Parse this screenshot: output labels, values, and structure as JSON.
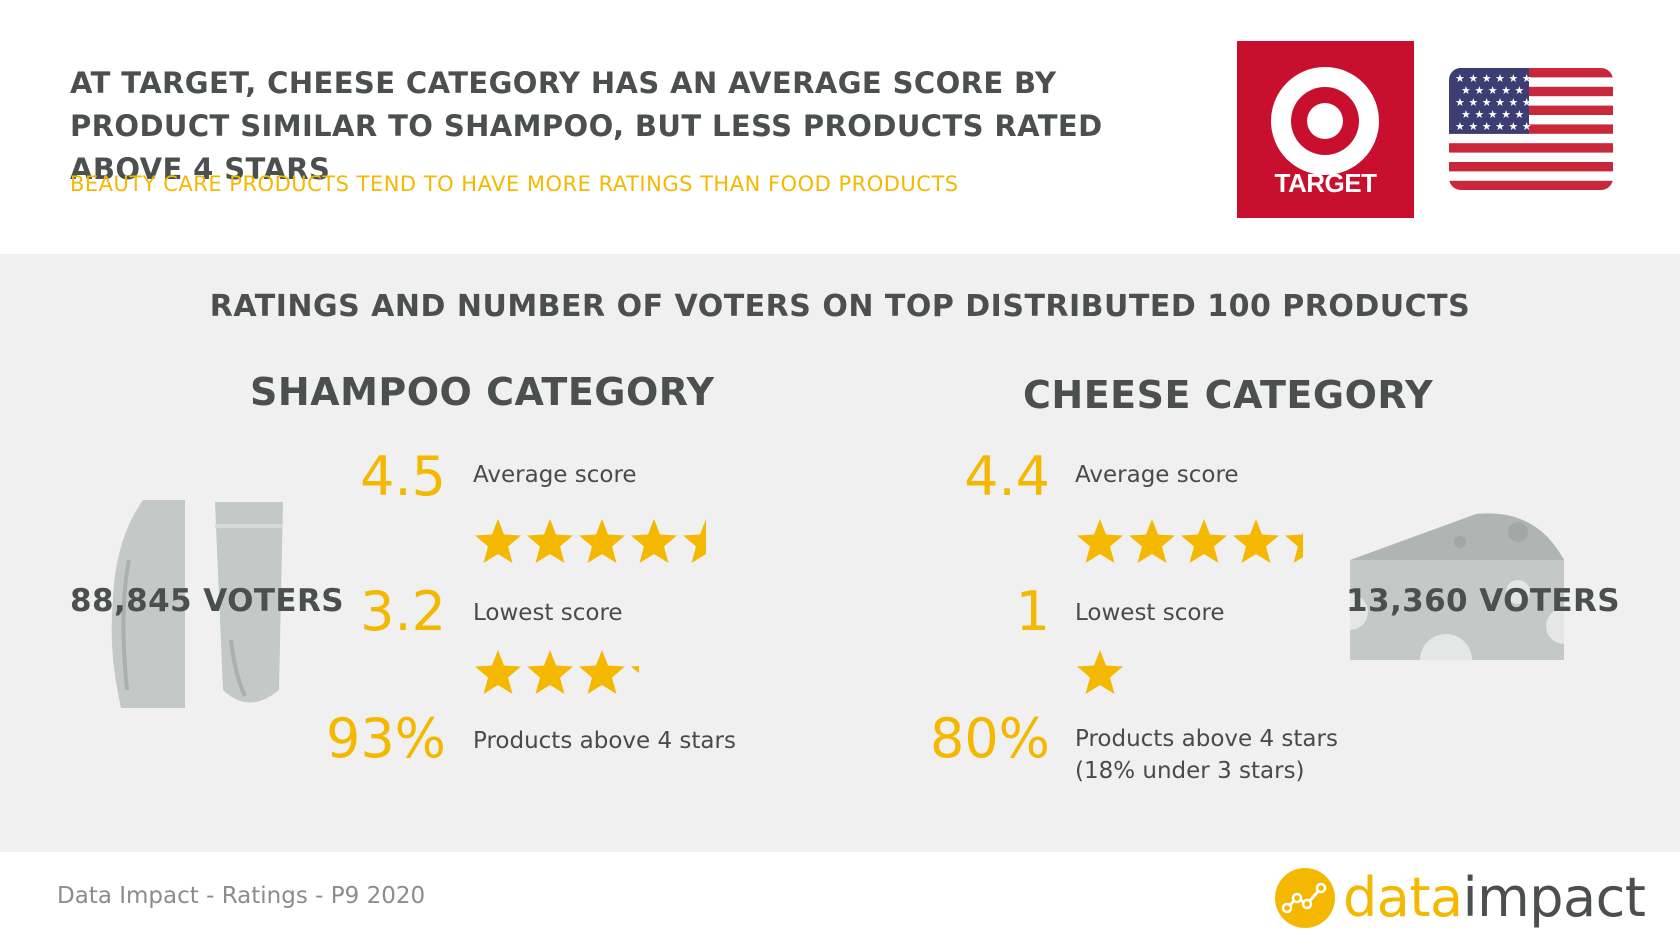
{
  "header": {
    "headline": "AT TARGET, CHEESE CATEGORY HAS AN AVERAGE SCORE BY PRODUCT SIMILAR TO SHAMPOO, BUT LESS PRODUCTS RATED ABOVE 4 STARS",
    "subline": "BEAUTY CARE PRODUCTS TEND TO HAVE MORE RATINGS THAN FOOD PRODUCTS",
    "retailer_logo": {
      "text": "TARGET",
      "color": "#c8102e",
      "icon": "target-bullseye-icon"
    },
    "country_flag": {
      "icon": "us-flag-icon"
    }
  },
  "panel": {
    "title": "RATINGS AND NUMBER OF VOTERS ON TOP DISTRIBUTED 100 PRODUCTS",
    "categories": [
      {
        "title": "SHAMPOO CATEGORY",
        "voters": "88,845 VOTERS",
        "icon": "shampoo-bottles-icon",
        "average": {
          "value": "4.5",
          "label": "Average score",
          "stars": 4.5
        },
        "lowest": {
          "value": "3.2",
          "label": "Lowest score",
          "stars": 3.2
        },
        "above": {
          "value": "93%",
          "label": "Products above 4 stars",
          "note": ""
        }
      },
      {
        "title": "CHEESE CATEGORY",
        "voters": "13,360 VOTERS",
        "icon": "cheese-wedge-icon",
        "average": {
          "value": "4.4",
          "label": "Average score",
          "stars": 4.4
        },
        "lowest": {
          "value": "1",
          "label": "Lowest score",
          "stars": 1
        },
        "above": {
          "value": "80%",
          "label": "Products above 4 stars",
          "note": "(18% under 3 stars)"
        }
      }
    ]
  },
  "footer": {
    "source": "Data Impact - Ratings - P9 2020",
    "brand_part1": "data",
    "brand_part2": "impact",
    "brand_icon": "line-chart-icon"
  },
  "colors": {
    "accent": "#f5b800",
    "text_dark": "#4b4f4f",
    "panel_bg": "#f0f0f0",
    "illustration": "#c3c9c7"
  }
}
